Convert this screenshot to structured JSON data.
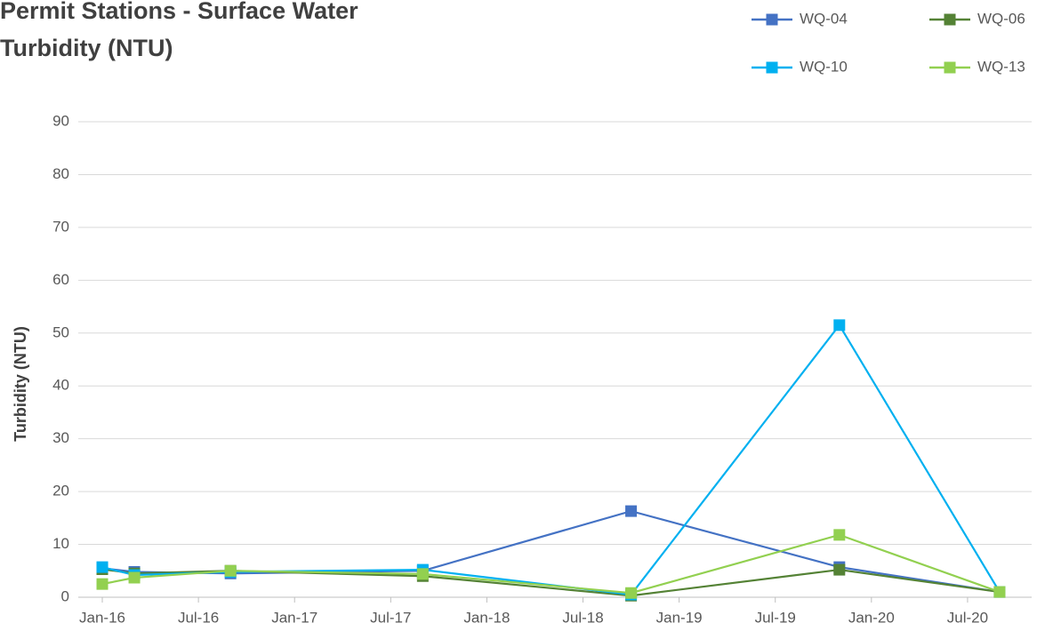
{
  "chart_data": {
    "type": "line",
    "title": "Permit Stations - Surface Water Turbidity (NTU)",
    "y_label": "Turbidity (NTU)",
    "x": [
      "2016-01",
      "2016-03",
      "2016-09",
      "2017-09",
      "2018-10",
      "2019-11",
      "2020-09"
    ],
    "series": [
      {
        "name": "WQ-04",
        "color": "#4472c4",
        "values": [
          5.5,
          4.8,
          4.5,
          5.0,
          16.3,
          5.7,
          1.0
        ]
      },
      {
        "name": "WQ-06",
        "color": "#548235",
        "values": [
          5.3,
          4.5,
          5.0,
          4.0,
          0.3,
          5.2,
          1.0
        ]
      },
      {
        "name": "WQ-10",
        "color": "#00b0f0",
        "values": [
          5.7,
          4.2,
          4.8,
          5.2,
          0.5,
          51.5,
          1.0
        ]
      },
      {
        "name": "WQ-13",
        "color": "#92d050",
        "values": [
          2.5,
          3.7,
          5.0,
          4.4,
          0.8,
          11.8,
          1.0
        ]
      }
    ],
    "xlim": [
      "2015-12",
      "2020-11"
    ],
    "xticks": [
      {
        "value": "2016-01",
        "label": "Jan-16"
      },
      {
        "value": "2016-07",
        "label": "Jul-16"
      },
      {
        "value": "2017-01",
        "label": "Jan-17"
      },
      {
        "value": "2017-07",
        "label": "Jul-17"
      },
      {
        "value": "2018-01",
        "label": "Jan-18"
      },
      {
        "value": "2018-07",
        "label": "Jul-18"
      },
      {
        "value": "2019-01",
        "label": "Jan-19"
      },
      {
        "value": "2019-07",
        "label": "Jul-19"
      },
      {
        "value": "2020-01",
        "label": "Jan-20"
      },
      {
        "value": "2020-07",
        "label": "Jul-20"
      }
    ],
    "ylim": [
      0,
      90
    ],
    "yticks": [
      0,
      10,
      20,
      30,
      40,
      50,
      60,
      70,
      80,
      90
    ],
    "grid": true,
    "legend": "top-right"
  }
}
